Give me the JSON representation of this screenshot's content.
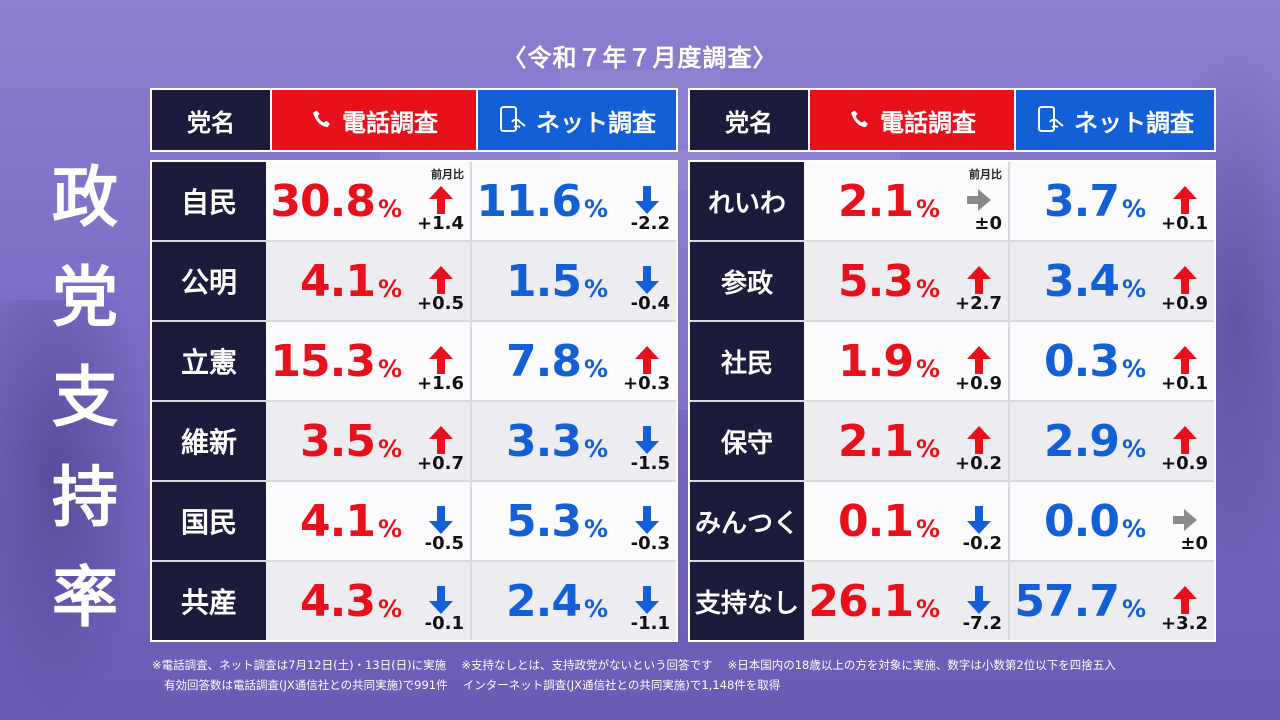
{
  "survey_title": "〈令和７年７月度調査〉",
  "vertical_title": [
    "政",
    "党",
    "支",
    "持",
    "率"
  ],
  "headers": {
    "party": "党名",
    "phone": "電話調査",
    "net": "ネット調査"
  },
  "change_label": "前月比",
  "percent_unit": "%",
  "colors": {
    "phone": "#e8101a",
    "net": "#1360d6",
    "party_bg": "#1d1b3c",
    "up": "#e8101a",
    "down": "#1360d6",
    "flat": "#8a8a8a"
  },
  "icons": {
    "phone": "phone-icon",
    "net": "smartphone-icon",
    "up": "arrow-up-icon",
    "down": "arrow-down-icon",
    "flat": "arrow-right-icon"
  },
  "chart_data": {
    "type": "table",
    "columns": [
      "党名",
      "電話調査",
      "前月比",
      "ネット調査",
      "前月比"
    ],
    "left_rows": [
      {
        "party": "自民",
        "phone": "30.8",
        "phone_change": "+1.4",
        "phone_dir": "up",
        "net": "11.6",
        "net_change": "-2.2",
        "net_dir": "down"
      },
      {
        "party": "公明",
        "phone": "4.1",
        "phone_change": "+0.5",
        "phone_dir": "up",
        "net": "1.5",
        "net_change": "-0.4",
        "net_dir": "down"
      },
      {
        "party": "立憲",
        "phone": "15.3",
        "phone_change": "+1.6",
        "phone_dir": "up",
        "net": "7.8",
        "net_change": "+0.3",
        "net_dir": "up"
      },
      {
        "party": "維新",
        "phone": "3.5",
        "phone_change": "+0.7",
        "phone_dir": "up",
        "net": "3.3",
        "net_change": "-1.5",
        "net_dir": "down"
      },
      {
        "party": "国民",
        "phone": "4.1",
        "phone_change": "-0.5",
        "phone_dir": "down",
        "net": "5.3",
        "net_change": "-0.3",
        "net_dir": "down"
      },
      {
        "party": "共産",
        "phone": "4.3",
        "phone_change": "-0.1",
        "phone_dir": "down",
        "net": "2.4",
        "net_change": "-1.1",
        "net_dir": "down"
      }
    ],
    "right_rows": [
      {
        "party": "れいわ",
        "phone": "2.1",
        "phone_change": "±0",
        "phone_dir": "flat",
        "net": "3.7",
        "net_change": "+0.1",
        "net_dir": "up"
      },
      {
        "party": "参政",
        "phone": "5.3",
        "phone_change": "+2.7",
        "phone_dir": "up",
        "net": "3.4",
        "net_change": "+0.9",
        "net_dir": "up"
      },
      {
        "party": "社民",
        "phone": "1.9",
        "phone_change": "+0.9",
        "phone_dir": "up",
        "net": "0.3",
        "net_change": "+0.1",
        "net_dir": "up"
      },
      {
        "party": "保守",
        "phone": "2.1",
        "phone_change": "+0.2",
        "phone_dir": "up",
        "net": "2.9",
        "net_change": "+0.9",
        "net_dir": "up"
      },
      {
        "party": "みんつく",
        "phone": "0.1",
        "phone_change": "-0.2",
        "phone_dir": "down",
        "net": "0.0",
        "net_change": "±0",
        "net_dir": "flat"
      },
      {
        "party": "支持なし",
        "phone": "26.1",
        "phone_change": "-7.2",
        "phone_dir": "down",
        "net": "57.7",
        "net_change": "+3.2",
        "net_dir": "up"
      }
    ]
  },
  "notes": {
    "line1": "※電話調査、ネット調査は7月12日(土)・13日(日)に実施　 ※支持なしとは、支持政党がないという回答です　 ※日本国内の18歳以上の方を対象に実施、数字は小数第2位以下を四捨五入",
    "line2": "有効回答数は電話調査(JX通信社との共同実施)で991件　 インターネット調査(JX通信社との共同実施)で1,148件を取得"
  }
}
